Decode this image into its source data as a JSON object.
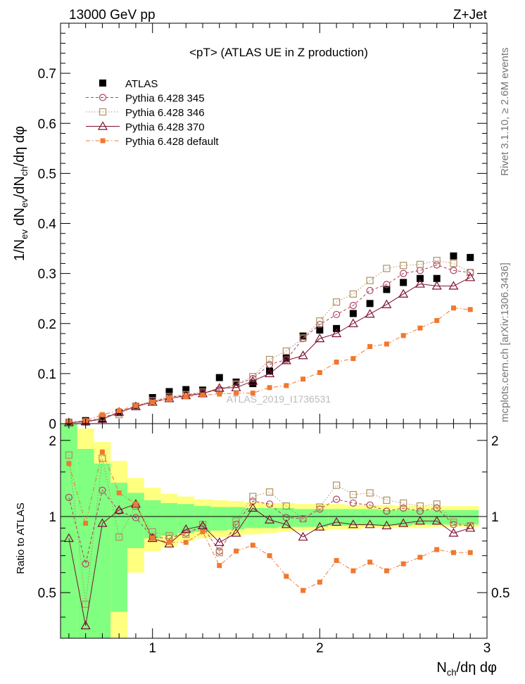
{
  "header": {
    "energy": "13000 GeV pp",
    "process": "Z+Jet",
    "side_top": "Rivet 3.1.10, ≥ 2.6M events",
    "side_bottom": "mcplots.cern.ch [arXiv:1306.3436]",
    "watermark": "ATLAS_2019_I1736531"
  },
  "chart_data": [
    {
      "type": "scatter",
      "title": "<pT> (ATLAS UE in Z production)",
      "xlabel": "N_ch/dη dφ",
      "ylabel": "1/N_ev dN_ev/dN_ch/dη dφ",
      "xlim": [
        0.45,
        3.0
      ],
      "ylim": [
        0,
        0.8
      ],
      "yticks": [
        0,
        0.1,
        0.2,
        0.3,
        0.4,
        0.5,
        0.6,
        0.7
      ],
      "ytick_labels": [
        "0",
        "0.1",
        "0.2",
        "0.3",
        "0.4",
        "0.5",
        "0.6",
        "0.7"
      ],
      "legend_position": "top-left",
      "series": [
        {
          "name": "ATLAS",
          "style": "data",
          "color": "#000000",
          "x": [
            0.5,
            0.6,
            0.7,
            0.8,
            0.9,
            1.0,
            1.1,
            1.2,
            1.3,
            1.4,
            1.5,
            1.6,
            1.7,
            1.8,
            1.9,
            2.0,
            2.1,
            2.2,
            2.3,
            2.4,
            2.5,
            2.6,
            2.7,
            2.8,
            2.9
          ],
          "y": [
            0.002,
            0.006,
            0.01,
            0.022,
            0.035,
            0.052,
            0.064,
            0.068,
            0.067,
            0.092,
            0.083,
            0.08,
            0.105,
            0.131,
            0.175,
            0.187,
            0.19,
            0.22,
            0.24,
            0.268,
            0.282,
            0.29,
            0.29,
            0.335,
            0.332
          ]
        },
        {
          "name": "Pythia 6.428 345",
          "style": "open-circle-dashed",
          "color": "#b04060",
          "x": [
            0.5,
            0.6,
            0.7,
            0.8,
            0.9,
            1.0,
            1.1,
            1.2,
            1.3,
            1.4,
            1.5,
            1.6,
            1.7,
            1.8,
            1.9,
            2.0,
            2.1,
            2.2,
            2.3,
            2.4,
            2.5,
            2.6,
            2.7,
            2.8,
            2.9
          ],
          "y": [
            0.002,
            0.004,
            0.012,
            0.022,
            0.035,
            0.044,
            0.052,
            0.058,
            0.061,
            0.068,
            0.078,
            0.09,
            0.118,
            0.128,
            0.17,
            0.198,
            0.218,
            0.236,
            0.266,
            0.278,
            0.3,
            0.306,
            0.317,
            0.306,
            0.302
          ]
        },
        {
          "name": "Pythia 6.428 346",
          "style": "open-square-dotted",
          "color": "#b09060",
          "x": [
            0.5,
            0.6,
            0.7,
            0.8,
            0.9,
            1.0,
            1.1,
            1.2,
            1.3,
            1.4,
            1.5,
            1.6,
            1.7,
            1.8,
            1.9,
            2.0,
            2.1,
            2.2,
            2.3,
            2.4,
            2.5,
            2.6,
            2.7,
            2.8,
            2.9
          ],
          "y": [
            0.003,
            0.003,
            0.013,
            0.018,
            0.035,
            0.046,
            0.054,
            0.058,
            0.063,
            0.066,
            0.079,
            0.094,
            0.128,
            0.145,
            0.171,
            0.205,
            0.243,
            0.259,
            0.286,
            0.31,
            0.316,
            0.318,
            0.326,
            0.32,
            0.302
          ]
        },
        {
          "name": "Pythia 6.428 370",
          "style": "open-triangle-solid",
          "color": "#7a1030",
          "x": [
            0.5,
            0.6,
            0.7,
            0.8,
            0.9,
            1.0,
            1.1,
            1.2,
            1.3,
            1.4,
            1.5,
            1.6,
            1.7,
            1.8,
            1.9,
            2.0,
            2.1,
            2.2,
            2.3,
            2.4,
            2.5,
            2.6,
            2.7,
            2.8,
            2.9
          ],
          "y": [
            0.002,
            0.004,
            0.009,
            0.023,
            0.034,
            0.043,
            0.05,
            0.056,
            0.06,
            0.071,
            0.072,
            0.085,
            0.1,
            0.126,
            0.136,
            0.17,
            0.18,
            0.2,
            0.219,
            0.238,
            0.259,
            0.279,
            0.275,
            0.275,
            0.292
          ]
        },
        {
          "name": "Pythia 6.428 default",
          "style": "filled-square-dashdot",
          "color": "#f07830",
          "x": [
            0.5,
            0.6,
            0.7,
            0.8,
            0.9,
            1.0,
            1.1,
            1.2,
            1.3,
            1.4,
            1.5,
            1.6,
            1.7,
            1.8,
            1.9,
            2.0,
            2.1,
            2.2,
            2.3,
            2.4,
            2.5,
            2.6,
            2.7,
            2.8,
            2.9
          ],
          "y": [
            0.004,
            0.006,
            0.018,
            0.026,
            0.036,
            0.043,
            0.05,
            0.054,
            0.057,
            0.059,
            0.061,
            0.061,
            0.072,
            0.076,
            0.089,
            0.102,
            0.123,
            0.13,
            0.154,
            0.159,
            0.176,
            0.191,
            0.206,
            0.231,
            0.228
          ]
        }
      ]
    },
    {
      "type": "scatter",
      "title": "",
      "xlabel": "N_ch/dη dφ",
      "ylabel": "Ratio to ATLAS",
      "xlim": [
        0.45,
        3.0
      ],
      "ylim": [
        0.33,
        2.33
      ],
      "log_y": true,
      "yticks": [
        0.5,
        1,
        2
      ],
      "ytick_labels": [
        "0.5",
        "1",
        "2"
      ],
      "xticks": [
        1,
        2,
        3
      ],
      "xtick_labels": [
        "1",
        "2",
        "3"
      ],
      "reference": 1.0,
      "bands": {
        "bin_edges": [
          0.45,
          0.55,
          0.65,
          0.75,
          0.85,
          0.95,
          1.05,
          1.15,
          1.25,
          1.35,
          1.45,
          1.55,
          1.65,
          1.75,
          1.85,
          1.95,
          2.05,
          2.15,
          2.25,
          2.35,
          2.45,
          2.55,
          2.65,
          2.75,
          2.85,
          2.95
        ],
        "stat_low": [
          0.33,
          0.33,
          0.33,
          0.42,
          0.75,
          0.82,
          0.84,
          0.86,
          0.87,
          0.88,
          0.89,
          0.9,
          0.9,
          0.91,
          0.91,
          0.91,
          0.92,
          0.92,
          0.92,
          0.92,
          0.92,
          0.93,
          0.93,
          0.93,
          0.93
        ],
        "stat_high": [
          2.33,
          1.85,
          1.62,
          1.36,
          1.24,
          1.16,
          1.13,
          1.12,
          1.1,
          1.09,
          1.09,
          1.08,
          1.08,
          1.08,
          1.07,
          1.07,
          1.07,
          1.07,
          1.07,
          1.06,
          1.06,
          1.06,
          1.06,
          1.06,
          1.06
        ],
        "syst_low": [
          0.33,
          0.33,
          0.33,
          0.33,
          0.6,
          0.73,
          0.76,
          0.8,
          0.82,
          0.83,
          0.84,
          0.85,
          0.86,
          0.87,
          0.88,
          0.88,
          0.89,
          0.89,
          0.9,
          0.9,
          0.9,
          0.9,
          0.91,
          0.91,
          0.91
        ],
        "syst_high": [
          2.33,
          2.23,
          1.97,
          1.66,
          1.42,
          1.3,
          1.23,
          1.2,
          1.17,
          1.16,
          1.15,
          1.14,
          1.13,
          1.13,
          1.12,
          1.12,
          1.12,
          1.11,
          1.11,
          1.11,
          1.1,
          1.1,
          1.1,
          1.1,
          1.1
        ]
      },
      "series": [
        {
          "name": "Pythia 6.428 345",
          "style": "open-circle-dashed",
          "color": "#b04060",
          "x": [
            0.5,
            0.6,
            0.7,
            0.8,
            0.9,
            1.0,
            1.1,
            1.2,
            1.3,
            1.4,
            1.5,
            1.6,
            1.7,
            1.8,
            1.9,
            2.0,
            2.1,
            2.2,
            2.3,
            2.4,
            2.5,
            2.6,
            2.7,
            2.8,
            2.9
          ],
          "y": [
            1.19,
            0.65,
            1.27,
            1.05,
            0.99,
            0.83,
            0.82,
            0.86,
            0.91,
            0.73,
            0.93,
            1.15,
            1.12,
            0.99,
            0.98,
            1.07,
            1.17,
            1.13,
            1.11,
            1.05,
            1.08,
            1.05,
            1.08,
            0.93,
            0.92
          ]
        },
        {
          "name": "Pythia 6.428 346",
          "style": "open-square-dotted",
          "color": "#b09060",
          "x": [
            0.5,
            0.6,
            0.7,
            0.8,
            0.9,
            1.0,
            1.1,
            1.2,
            1.3,
            1.4,
            1.5,
            1.6,
            1.7,
            1.8,
            1.9,
            2.0,
            2.1,
            2.2,
            2.3,
            2.4,
            2.5,
            2.6,
            2.7,
            2.8,
            2.9
          ],
          "y": [
            1.75,
            0.45,
            1.7,
            0.83,
            1.1,
            0.87,
            0.84,
            0.85,
            0.93,
            0.72,
            0.96,
            1.2,
            1.25,
            1.1,
            0.98,
            1.09,
            1.33,
            1.22,
            1.24,
            1.16,
            1.13,
            1.1,
            1.12,
            0.95,
            0.92
          ]
        },
        {
          "name": "Pythia 6.428 370",
          "style": "open-triangle-solid",
          "color": "#7a1030",
          "x": [
            0.5,
            0.6,
            0.7,
            0.8,
            0.9,
            1.0,
            1.1,
            1.2,
            1.3,
            1.4,
            1.5,
            1.6,
            1.7,
            1.8,
            1.9,
            2.0,
            2.1,
            2.2,
            2.3,
            2.4,
            2.5,
            2.6,
            2.7,
            2.8,
            2.9
          ],
          "y": [
            0.82,
            0.37,
            0.94,
            1.06,
            1.12,
            0.82,
            0.78,
            0.89,
            0.92,
            0.79,
            0.86,
            1.08,
            0.97,
            0.93,
            0.83,
            0.91,
            0.95,
            0.93,
            0.93,
            0.92,
            0.94,
            0.96,
            0.96,
            0.86,
            0.9
          ]
        },
        {
          "name": "Pythia 6.428 default",
          "style": "filled-square-dashdot",
          "color": "#f07830",
          "x": [
            0.5,
            0.6,
            0.7,
            0.8,
            0.9,
            1.0,
            1.1,
            1.2,
            1.3,
            1.4,
            1.5,
            1.6,
            1.7,
            1.8,
            1.9,
            2.0,
            2.1,
            2.2,
            2.3,
            2.4,
            2.5,
            2.6,
            2.7,
            2.8,
            2.9
          ],
          "y": [
            1.62,
            0.94,
            1.8,
            1.24,
            1.12,
            0.82,
            0.79,
            0.79,
            0.87,
            0.64,
            0.73,
            0.77,
            0.7,
            0.58,
            0.51,
            0.55,
            0.67,
            0.61,
            0.66,
            0.61,
            0.65,
            0.69,
            0.74,
            0.72,
            0.72
          ]
        }
      ]
    }
  ]
}
